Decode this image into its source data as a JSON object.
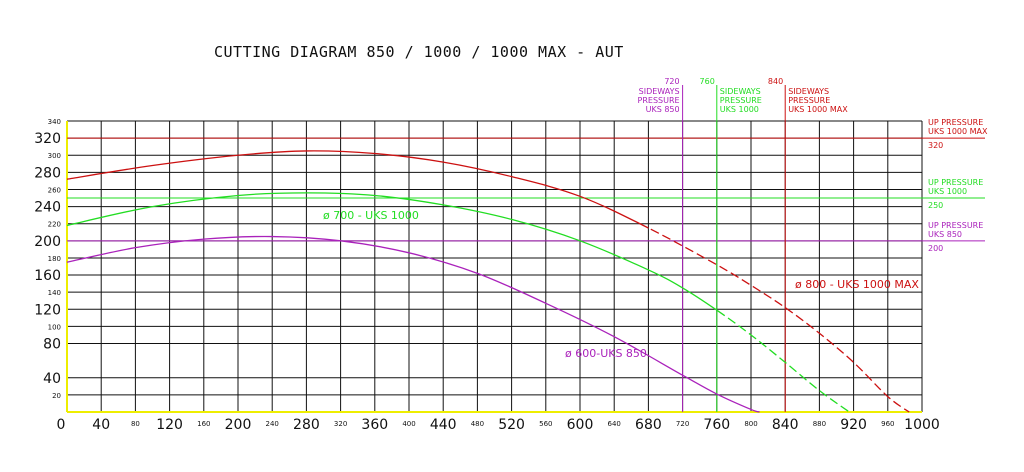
{
  "colors": {
    "red": "#cc1111",
    "green": "#22dd22",
    "purple": "#aa22bb",
    "grid": "#111111",
    "axis": "#eeee00"
  },
  "chart_data": {
    "type": "line",
    "title": "CUTTING DIAGRAM  850 / 1000 / 1000 MAX - AUT",
    "xlabel": "",
    "ylabel": "",
    "xlim": [
      0,
      1000
    ],
    "ylim": [
      0,
      340
    ],
    "grid": true,
    "x_ticks_major": [
      0,
      40,
      120,
      200,
      280,
      360,
      440,
      520,
      600,
      680,
      760,
      840,
      920,
      1000
    ],
    "x_ticks_minor": [
      80,
      160,
      240,
      320,
      400,
      480,
      560,
      640,
      720,
      800,
      880,
      960
    ],
    "y_ticks_major": [
      40,
      80,
      120,
      160,
      200,
      240,
      280,
      320
    ],
    "y_ticks_minor": [
      20,
      100,
      140,
      180,
      220,
      260,
      300,
      340
    ],
    "series": [
      {
        "name": "ø 800 - UKS 1000 MAX",
        "color": "#cc1111",
        "x": [
          0,
          100,
          200,
          280,
          360,
          440,
          520,
          600,
          680,
          760,
          800,
          840,
          880,
          920,
          960,
          985
        ],
        "y": [
          272,
          288,
          300,
          305,
          302,
          292,
          275,
          252,
          215,
          172,
          148,
          122,
          92,
          58,
          18,
          0
        ],
        "dashed_from_x": 680
      },
      {
        "name": "ø 700 - UKS 1000",
        "color": "#22dd22",
        "x": [
          0,
          100,
          200,
          280,
          360,
          440,
          520,
          600,
          680,
          720,
          760,
          800,
          840,
          880,
          915
        ],
        "y": [
          218,
          240,
          253,
          256,
          253,
          242,
          225,
          200,
          166,
          145,
          119,
          90,
          58,
          25,
          0
        ],
        "dashed_from_x": 760
      },
      {
        "name": "ø 600-UKS 850",
        "color": "#aa22bb",
        "x": [
          0,
          80,
          160,
          240,
          320,
          400,
          480,
          560,
          640,
          720,
          760,
          800,
          810
        ],
        "y": [
          175,
          192,
          202,
          205,
          200,
          186,
          162,
          127,
          88,
          43,
          21,
          3,
          0
        ]
      }
    ],
    "reference_lines": [
      {
        "orientation": "horizontal",
        "value": 320,
        "value_label": "320",
        "label": "UP PRESSURE\nUKS 1000 MAX",
        "color": "#cc1111"
      },
      {
        "orientation": "horizontal",
        "value": 250,
        "value_label": "250",
        "label": "UP PRESSURE\nUKS 1000",
        "color": "#22dd22"
      },
      {
        "orientation": "horizontal",
        "value": 200,
        "value_label": "200",
        "label": "UP PRESSURE\nUKS 850",
        "color": "#aa22bb"
      },
      {
        "orientation": "vertical",
        "value": 720,
        "value_label": "720",
        "label": "SIDEWAYS\nPRESSURE\nUKS 850",
        "color": "#aa22bb"
      },
      {
        "orientation": "vertical",
        "value": 760,
        "value_label": "760",
        "label": "SIDEWAYS\nPRESSURE\nUKS 1000",
        "color": "#22dd22"
      },
      {
        "orientation": "vertical",
        "value": 840,
        "value_label": "840",
        "label": "SIDEWAYS\nPRESSURE\nUKS 1000 MAX",
        "color": "#cc1111"
      }
    ]
  }
}
